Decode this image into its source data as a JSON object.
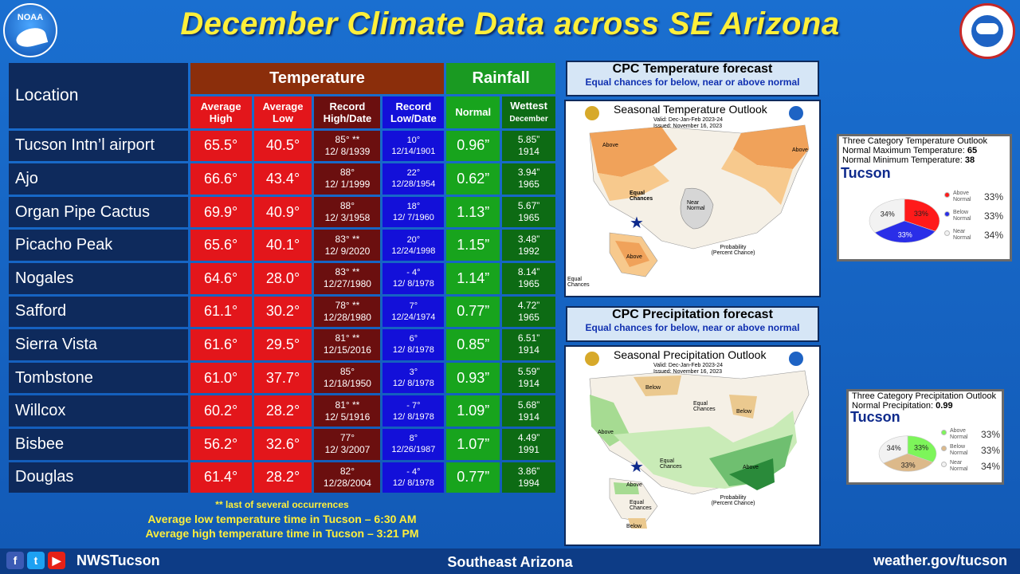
{
  "title": "December Climate Data across SE Arizona",
  "logos": {
    "noaa_text": "NOAA"
  },
  "table": {
    "location_header": "Location",
    "temperature_header": "Temperature",
    "rainfall_header": "Rainfall",
    "columns": [
      {
        "line1": "Average",
        "line2": "High"
      },
      {
        "line1": "Average",
        "line2": "Low"
      },
      {
        "line1": "Record",
        "line2": "High/Date"
      },
      {
        "line1": "Record",
        "line2": "Low/Date"
      },
      {
        "line1": "Normal",
        "line2": ""
      },
      {
        "line1": "Wettest",
        "line2": "December"
      }
    ],
    "rows": [
      {
        "location": "Tucson Intn’l airport",
        "avg_high": "65.5°",
        "avg_low": "40.5°",
        "rec_high": "85° **",
        "rec_high_date": "12/ 8/1939",
        "rec_low": "10°",
        "rec_low_date": "12/14/1901",
        "normal": "0.96”",
        "wettest": "5.85”",
        "wettest_year": "1914"
      },
      {
        "location": "Ajo",
        "avg_high": "66.6°",
        "avg_low": "43.4°",
        "rec_high": "88°",
        "rec_high_date": "12/ 1/1999",
        "rec_low": "22°",
        "rec_low_date": "12/28/1954",
        "normal": "0.62”",
        "wettest": "3.94”",
        "wettest_year": "1965"
      },
      {
        "location": "Organ Pipe Cactus",
        "avg_high": "69.9°",
        "avg_low": "40.9°",
        "rec_high": "88°",
        "rec_high_date": "12/ 3/1958",
        "rec_low": "18°",
        "rec_low_date": "12/ 7/1960",
        "normal": "1.13”",
        "wettest": "5.67”",
        "wettest_year": "1965"
      },
      {
        "location": "Picacho Peak",
        "avg_high": "65.6°",
        "avg_low": "40.1°",
        "rec_high": "83° **",
        "rec_high_date": "12/ 9/2020",
        "rec_low": "20°",
        "rec_low_date": "12/24/1998",
        "normal": "1.15”",
        "wettest": "3.48”",
        "wettest_year": "1992"
      },
      {
        "location": "Nogales",
        "avg_high": "64.6°",
        "avg_low": "28.0°",
        "rec_high": "83° **",
        "rec_high_date": "12/27/1980",
        "rec_low": "- 4°",
        "rec_low_date": "12/ 8/1978",
        "normal": "1.14”",
        "wettest": "8.14”",
        "wettest_year": "1965"
      },
      {
        "location": "Safford",
        "avg_high": "61.1°",
        "avg_low": "30.2°",
        "rec_high": "78° **",
        "rec_high_date": "12/28/1980",
        "rec_low": "7°",
        "rec_low_date": "12/24/1974",
        "normal": "0.77”",
        "wettest": "4.72”",
        "wettest_year": "1965"
      },
      {
        "location": "Sierra Vista",
        "avg_high": "61.6°",
        "avg_low": "29.5°",
        "rec_high": "81° **",
        "rec_high_date": "12/15/2016",
        "rec_low": "6°",
        "rec_low_date": "12/ 8/1978",
        "normal": "0.85”",
        "wettest": "6.51”",
        "wettest_year": "1914"
      },
      {
        "location": "Tombstone",
        "avg_high": "61.0°",
        "avg_low": "37.7°",
        "rec_high": "85°",
        "rec_high_date": "12/18/1950",
        "rec_low": "3°",
        "rec_low_date": "12/ 8/1978",
        "normal": "0.93”",
        "wettest": "5.59”",
        "wettest_year": "1914"
      },
      {
        "location": "Willcox",
        "avg_high": "60.2°",
        "avg_low": "28.2°",
        "rec_high": "81° **",
        "rec_high_date": "12/ 5/1916",
        "rec_low": "- 7°",
        "rec_low_date": "12/ 8/1978",
        "normal": "1.09”",
        "wettest": "5.68”",
        "wettest_year": "1914"
      },
      {
        "location": "Bisbee",
        "avg_high": "56.2°",
        "avg_low": "32.6°",
        "rec_high": "77°",
        "rec_high_date": "12/ 3/2007",
        "rec_low": "8°",
        "rec_low_date": "12/26/1987",
        "normal": "1.07”",
        "wettest": "4.49”",
        "wettest_year": "1991"
      },
      {
        "location": "Douglas",
        "avg_high": "61.4°",
        "avg_low": "28.2°",
        "rec_high": "82°",
        "rec_high_date": "12/28/2004",
        "rec_low": "- 4°",
        "rec_low_date": "12/ 8/1978",
        "normal": "0.77”",
        "wettest": "3.86”",
        "wettest_year": "1994"
      }
    ]
  },
  "notes": {
    "occurrences": "** last of several occurrences",
    "low_time": "Average low temperature time in Tucson – 6:30 AM",
    "high_time": "Average high temperature time in Tucson – 3:21 PM"
  },
  "temp_forecast": {
    "title": "CPC Temperature forecast",
    "subtitle": "Equal chances for below, near or above normal",
    "map_title": "Seasonal Temperature Outlook",
    "valid": "Valid:   Dec-Jan-Feb 2023-24",
    "issued": "Issued:   November 16, 2023",
    "labels": {
      "above_nw": "Above",
      "above_ne": "Above",
      "equal": "Equal Chances",
      "near": "Near Normal",
      "above_ak": "Above",
      "equal_ak": "Equal Chances",
      "prob": "Probability (Percent Chance)"
    }
  },
  "precip_forecast": {
    "title": "CPC Precipitation forecast",
    "subtitle": "Equal chances for below, near or above normal",
    "map_title": "Seasonal Precipitation Outlook",
    "valid": "Valid:   Dec-Jan-Feb 2023-24",
    "issued": "Issued:   November 16, 2023",
    "labels": {
      "below_n": "Below",
      "equal_n": "Equal Chances",
      "below_ne": "Below",
      "above_w": "Above",
      "equal_c": "Equal Chances",
      "above_se": "Above",
      "above_ak": "Above",
      "equal_ak": "Equal Chances",
      "below_ak": "Below",
      "prob": "Probability (Percent Chance)"
    }
  },
  "temp_pie": {
    "title": "Three Category Temperature Outlook",
    "max_label": "Normal Maximum Temperature:",
    "max_value": "65",
    "min_label": "Normal Minimum Temperature:",
    "min_value": "38",
    "city": "Tucson",
    "slices": [
      {
        "name": "Above Normal",
        "value": 33,
        "label": "33%",
        "color": "#ff1a1a"
      },
      {
        "name": "Below Normal",
        "value": 33,
        "label": "33%",
        "color": "#2a2ee8"
      },
      {
        "name": "Near Normal",
        "value": 34,
        "label": "34%",
        "color": "#f2f2f2"
      }
    ],
    "legend": [
      {
        "line1": "Above",
        "line2": "Normal",
        "pct": "33%",
        "color": "#ff1a1a"
      },
      {
        "line1": "Below",
        "line2": "Normal",
        "pct": "33%",
        "color": "#2a2ee8"
      },
      {
        "line1": "Near",
        "line2": "Normal",
        "pct": "34%",
        "color": "#f2f2f2"
      }
    ]
  },
  "precip_pie": {
    "title": "Three Category Precipitation Outlook",
    "normal_label": "Normal Precipitation:",
    "normal_value": "0.99",
    "city": "Tucson",
    "slices": [
      {
        "name": "Above Normal",
        "value": 33,
        "label": "33%",
        "color": "#7df55a"
      },
      {
        "name": "Below Normal",
        "value": 33,
        "label": "33%",
        "color": "#dcb98a"
      },
      {
        "name": "Near Normal",
        "value": 34,
        "label": "34%",
        "color": "#f2f2f2"
      }
    ],
    "legend": [
      {
        "line1": "Above",
        "line2": "Normal",
        "pct": "33%",
        "color": "#7df55a"
      },
      {
        "line1": "Below",
        "line2": "Normal",
        "pct": "33%",
        "color": "#dcb98a"
      },
      {
        "line1": "Near",
        "line2": "Normal",
        "pct": "34%",
        "color": "#f2f2f2"
      }
    ]
  },
  "footer": {
    "handle": "NWSTucson",
    "center": "Southeast Arizona",
    "url": "weather.gov/tucson"
  }
}
